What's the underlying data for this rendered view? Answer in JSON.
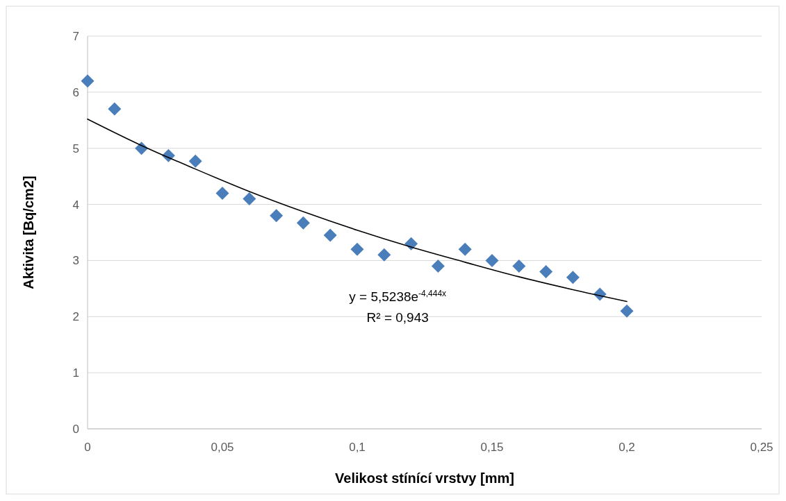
{
  "chart_data": {
    "type": "scatter",
    "xlabel": "Velikost stínící vrstvy [mm]",
    "ylabel": "Aktivita [Bq/cm2]",
    "x": [
      0,
      0.01,
      0.02,
      0.03,
      0.04,
      0.05,
      0.06,
      0.07,
      0.08,
      0.09,
      0.1,
      0.11,
      0.12,
      0.13,
      0.14,
      0.15,
      0.16,
      0.17,
      0.18,
      0.19,
      0.2
    ],
    "series": [
      {
        "color": "#4a7ebb",
        "marker": "diamond",
        "values": [
          6.2,
          5.7,
          5.0,
          4.87,
          4.77,
          4.2,
          4.1,
          3.8,
          3.67,
          3.45,
          3.2,
          3.1,
          3.3,
          2.9,
          3.2,
          3.0,
          2.9,
          2.8,
          2.7,
          2.4,
          2.1
        ]
      },
      {
        "type": "line",
        "color": "#000000",
        "line_style": "solid",
        "x": [
          0,
          0.02,
          0.04,
          0.06,
          0.08,
          0.1,
          0.12,
          0.14,
          0.16,
          0.18,
          0.2
        ],
        "values": [
          5.52,
          5.05,
          4.63,
          4.23,
          3.87,
          3.54,
          3.24,
          2.97,
          2.71,
          2.48,
          2.27
        ]
      }
    ],
    "xlim": [
      0,
      0.25
    ],
    "ylim": [
      0,
      7
    ],
    "xticks": [
      0,
      {
        "value": 0.05,
        "label": "0,05"
      },
      {
        "value": 0.1,
        "label": "0,1"
      },
      {
        "value": 0.15,
        "label": "0,15"
      },
      {
        "value": 0.2,
        "label": "0,2"
      },
      {
        "value": 0.25,
        "label": "0,25"
      }
    ],
    "yticks": [
      0,
      1,
      2,
      3,
      4,
      5,
      6,
      7
    ],
    "grid": "y",
    "annotations": [
      "y = 5,5238e$^{-4,444x}$",
      "R² = 0,943"
    ]
  }
}
